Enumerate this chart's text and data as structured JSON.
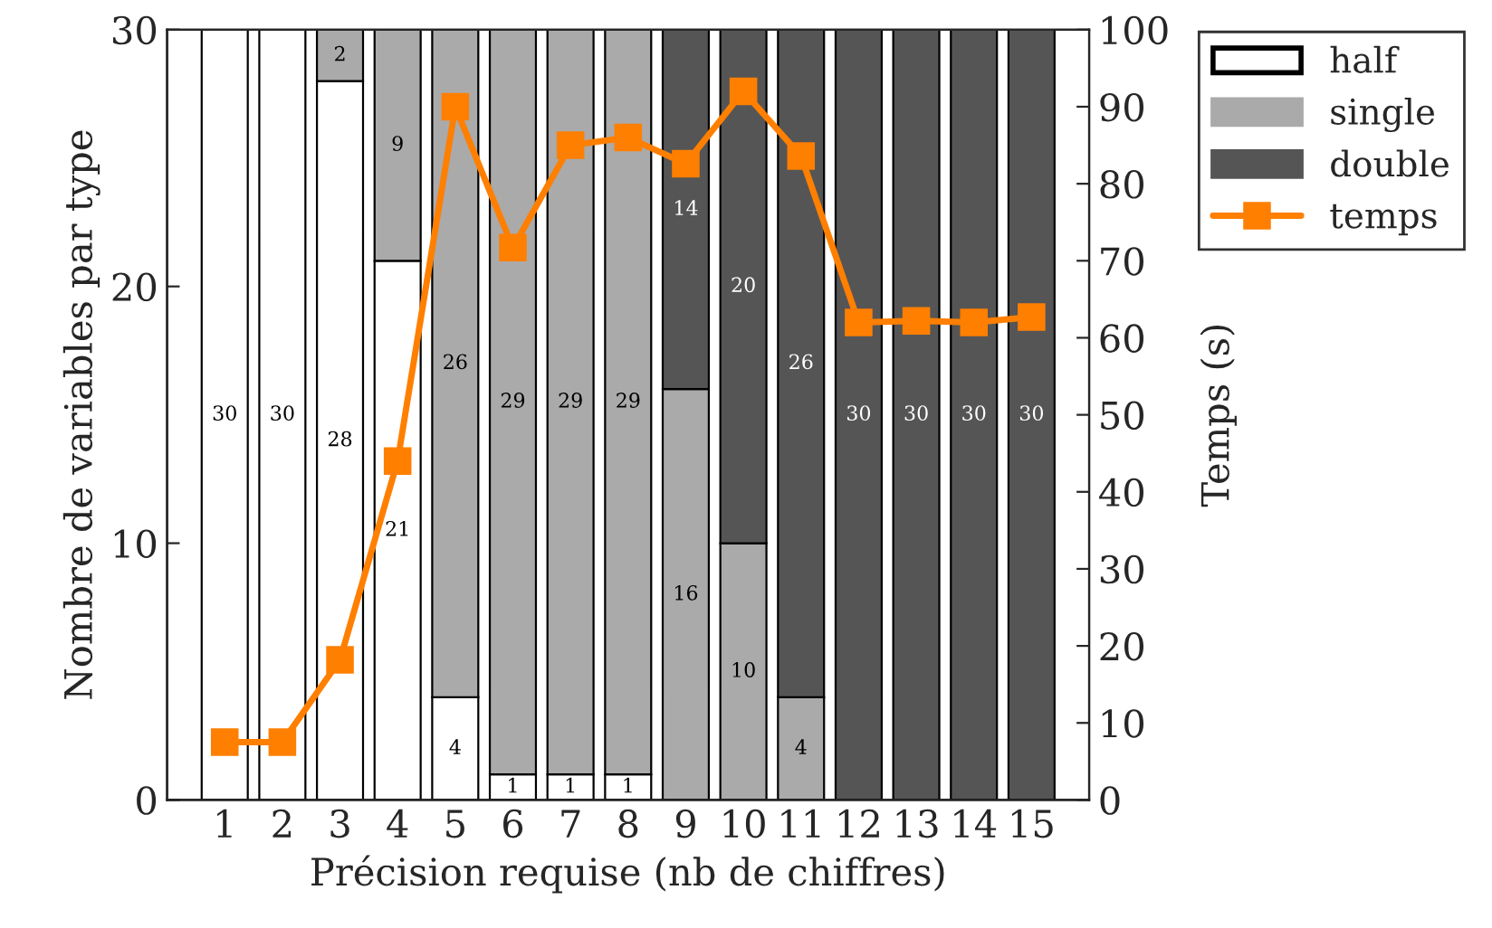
{
  "chart_data": {
    "type": "bar",
    "stacked": true,
    "xlabel": "Précision requise (nb de chiffres)",
    "ylabel": "Nombre de variables par type",
    "y2label": "Temps (s)",
    "x": [
      1,
      2,
      3,
      4,
      5,
      6,
      7,
      8,
      9,
      10,
      11,
      12,
      13,
      14,
      15
    ],
    "xlim": [
      0,
      16
    ],
    "xticks": [
      1,
      2,
      3,
      4,
      5,
      6,
      7,
      8,
      9,
      10,
      11,
      12,
      13,
      14,
      15
    ],
    "ylim": [
      0,
      30
    ],
    "yticks": [
      0,
      10,
      20,
      30
    ],
    "y2lim": [
      0,
      100
    ],
    "y2ticks": [
      0,
      10,
      20,
      30,
      40,
      50,
      60,
      70,
      80,
      90,
      100
    ],
    "legend": "top right",
    "grid": false,
    "marker": "square",
    "line_style": "solid",
    "series": [
      {
        "name": "half",
        "color": "#ffffff",
        "values": [
          30,
          30,
          28,
          21,
          4,
          1,
          1,
          1,
          null,
          null,
          null,
          null,
          null,
          null,
          null
        ],
        "value_labels": [
          "30",
          "30",
          "28",
          "21",
          "4",
          "1",
          "1",
          "1",
          null,
          null,
          null,
          null,
          null,
          null,
          null
        ]
      },
      {
        "name": "single",
        "color": "#aaaaaa",
        "values": [
          null,
          null,
          2,
          9,
          26,
          29,
          29,
          29,
          16,
          10,
          4,
          null,
          null,
          null,
          null
        ],
        "value_labels": [
          null,
          null,
          "2",
          "9",
          "26",
          "29",
          "29",
          "29",
          "16",
          "10",
          "4",
          null,
          null,
          null,
          null
        ]
      },
      {
        "name": "double",
        "color": "#555555",
        "values": [
          null,
          null,
          null,
          null,
          null,
          null,
          null,
          null,
          14,
          20,
          26,
          30,
          30,
          30,
          30
        ],
        "value_labels": [
          null,
          null,
          null,
          null,
          null,
          null,
          null,
          null,
          "14",
          "20",
          "26",
          "30",
          "30",
          "30",
          "30"
        ]
      },
      {
        "name": "temps",
        "type": "line",
        "axis": "y2",
        "color": "#ff7f00",
        "values": [
          7.5,
          7.5,
          18.2,
          44,
          90,
          71.7,
          85,
          86,
          82.6,
          92,
          83.6,
          62,
          62.2,
          62,
          62.7
        ]
      }
    ]
  }
}
